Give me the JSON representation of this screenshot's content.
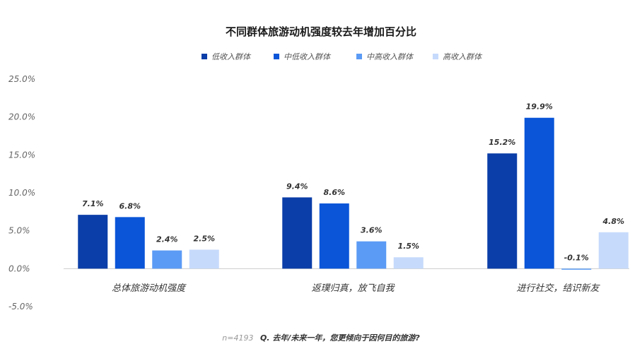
{
  "chart_data": {
    "type": "bar",
    "title": "不同群体旅游动机强度较去年增加百分比",
    "categories": [
      "总体旅游动机强度",
      "返璞归真，放飞自我",
      "进行社交，结识新友"
    ],
    "series": [
      {
        "name": "低收入群体",
        "color": "#0b3ea8",
        "values": [
          7.1,
          9.4,
          15.2
        ]
      },
      {
        "name": "中低收入群体",
        "color": "#0a55d8",
        "values": [
          6.8,
          8.6,
          19.9
        ]
      },
      {
        "name": "中高收入群体",
        "color": "#5b9bf5",
        "values": [
          2.4,
          3.6,
          -0.1
        ]
      },
      {
        "name": "高收入群体",
        "color": "#c6dafc",
        "values": [
          2.5,
          1.5,
          4.8
        ]
      }
    ],
    "data_labels": [
      [
        "7.1%",
        "9.4%",
        "15.2%"
      ],
      [
        "6.8%",
        "8.6%",
        "19.9%"
      ],
      [
        "2.4%",
        "3.6%",
        "-0.1%"
      ],
      [
        "2.5%",
        "1.5%",
        "4.8%"
      ]
    ],
    "y_ticks": [
      25,
      20,
      15,
      10,
      5,
      0,
      -5
    ],
    "y_tick_labels": [
      "25.0%",
      "20.0%",
      "15.0%",
      "10.0%",
      "5.0%",
      "0.0%",
      "-5.0%"
    ],
    "ylim": [
      -5,
      25
    ],
    "legend_position": "top-center",
    "grid": false
  },
  "footnote": {
    "sample": "n=4193",
    "question": "Q. 去年/未来一年，您更倾向于因何目的旅游?"
  }
}
